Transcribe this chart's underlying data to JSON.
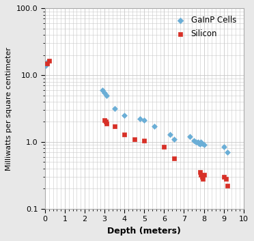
{
  "gainp_x": [
    0.05,
    0.15,
    2.9,
    3.0,
    3.1,
    3.5,
    4.0,
    4.8,
    5.0,
    5.5,
    6.3,
    6.5,
    7.3,
    7.5,
    7.6,
    7.7,
    7.75,
    7.8,
    7.85,
    7.9,
    8.0,
    9.0,
    9.2
  ],
  "gainp_y": [
    14.0,
    16.0,
    6.0,
    5.5,
    5.0,
    3.2,
    2.5,
    2.2,
    2.1,
    1.7,
    1.3,
    1.1,
    1.2,
    1.05,
    1.0,
    1.0,
    0.95,
    0.93,
    1.0,
    0.95,
    0.9,
    0.85,
    0.7
  ],
  "silicon_x": [
    0.1,
    0.2,
    3.0,
    3.05,
    3.1,
    3.5,
    4.0,
    4.5,
    5.0,
    6.0,
    6.5,
    7.8,
    7.85,
    7.9,
    7.95,
    8.0,
    9.0,
    9.1,
    9.2
  ],
  "silicon_y": [
    15.0,
    16.5,
    2.1,
    2.0,
    1.9,
    1.7,
    1.3,
    1.1,
    1.05,
    0.85,
    0.57,
    0.35,
    0.32,
    0.3,
    0.28,
    0.32,
    0.3,
    0.28,
    0.22
  ],
  "gainp_color": "#6baed6",
  "silicon_color": "#d73027",
  "xlabel": "Depth (meters)",
  "ylabel": "Milliwatts per square centimeter",
  "xlim": [
    0,
    10
  ],
  "ylim": [
    0.1,
    100.0
  ],
  "ytick_labels": [
    "0.1",
    "1.0",
    "10.0",
    "100.0"
  ],
  "ytick_vals": [
    0.1,
    1.0,
    10.0,
    100.0
  ],
  "xticks": [
    0,
    1,
    2,
    3,
    4,
    5,
    6,
    7,
    8,
    9,
    10
  ],
  "gainp_label": "GaInP Cells",
  "silicon_label": "Silicon",
  "fig_bg_color": "#e8e8e8",
  "plot_bg_color": "#ffffff",
  "grid_color": "#c8c8c8",
  "border_color": "#aaaaaa"
}
